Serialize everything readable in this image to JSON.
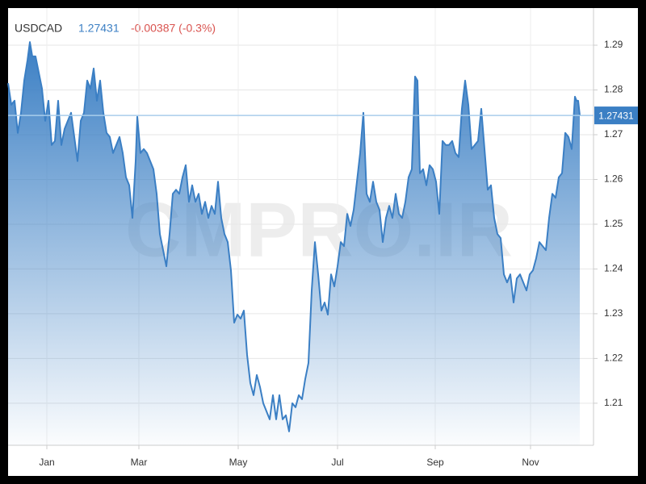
{
  "chart_data": {
    "type": "area",
    "title": "USDCAD",
    "last_value": 1.27431,
    "change": "-0.00387 (-0.3%)",
    "watermark": "CMPRO.IR",
    "color": "#3b7fc4",
    "change_color": "#d9534f",
    "grid": true,
    "x": [
      -24,
      -22,
      -20,
      -18,
      -16,
      -14,
      -12,
      -10.5,
      -9,
      -7,
      -5,
      -3,
      -1,
      1,
      3,
      5,
      7,
      9,
      11,
      13,
      15,
      17,
      19,
      21,
      23,
      25,
      27,
      29,
      31,
      33,
      35,
      37,
      39,
      41,
      43,
      45,
      47,
      49,
      51,
      53,
      55,
      56,
      58,
      60,
      62,
      64,
      66,
      68,
      70,
      72,
      74,
      76,
      78,
      80,
      82,
      84,
      86,
      88,
      90,
      92,
      94,
      96,
      98,
      100,
      102,
      104,
      106,
      108,
      110,
      112,
      114,
      116,
      118,
      120,
      122,
      124,
      126,
      128,
      130,
      132,
      134,
      136,
      138,
      140,
      142,
      144,
      146,
      148,
      150,
      152,
      154,
      156,
      158,
      160,
      162,
      164,
      166,
      168,
      170,
      172,
      174,
      176,
      178,
      180,
      182,
      184,
      186,
      188,
      190,
      192,
      194,
      196,
      198,
      200,
      202,
      204,
      206,
      208,
      210,
      212,
      214,
      216,
      218,
      220,
      222,
      224,
      226,
      228,
      229.5,
      231,
      233,
      235,
      237,
      239,
      241,
      243,
      245,
      247,
      249,
      251,
      253,
      255,
      257,
      259,
      261,
      263,
      265,
      267,
      269,
      271,
      273,
      275,
      277,
      279,
      281,
      283,
      285,
      287,
      289,
      291,
      293,
      295,
      297,
      299,
      301,
      303,
      305,
      307,
      309,
      311,
      313,
      315,
      317,
      319,
      321,
      323,
      325,
      327,
      328,
      329,
      330
    ],
    "values": [
      1.2815,
      1.2767,
      1.2776,
      1.2704,
      1.2749,
      1.2821,
      1.2866,
      1.2907,
      1.2875,
      1.2875,
      1.2839,
      1.2803,
      1.2731,
      1.2776,
      1.2677,
      1.2686,
      1.2776,
      1.2677,
      1.2713,
      1.2731,
      1.2749,
      1.2695,
      1.2641,
      1.2731,
      1.2749,
      1.2821,
      1.2803,
      1.2848,
      1.2776,
      1.2821,
      1.2749,
      1.2704,
      1.2695,
      1.2659,
      1.2677,
      1.2695,
      1.2659,
      1.2605,
      1.2587,
      1.2514,
      1.2641,
      1.274,
      1.2659,
      1.2668,
      1.2659,
      1.2641,
      1.2623,
      1.2568,
      1.2478,
      1.2442,
      1.2406,
      1.2478,
      1.2568,
      1.2577,
      1.2568,
      1.2605,
      1.2632,
      1.255,
      1.2587,
      1.255,
      1.2568,
      1.2523,
      1.255,
      1.2514,
      1.2541,
      1.2523,
      1.2595,
      1.2514,
      1.2478,
      1.246,
      1.2397,
      1.228,
      1.2298,
      1.2289,
      1.2307,
      1.2208,
      1.2145,
      1.2118,
      1.2163,
      1.2136,
      1.21,
      1.2082,
      1.2064,
      1.2118,
      1.2064,
      1.2118,
      1.2064,
      1.2073,
      1.2037,
      1.21,
      1.2091,
      1.2118,
      1.2109,
      1.2154,
      1.219,
      1.2352,
      1.246,
      1.2388,
      1.2307,
      1.2325,
      1.2298,
      1.2388,
      1.2361,
      1.2406,
      1.246,
      1.2451,
      1.2523,
      1.2496,
      1.2532,
      1.2595,
      1.2659,
      1.2749,
      1.2568,
      1.255,
      1.2595,
      1.255,
      1.2532,
      1.246,
      1.2514,
      1.2541,
      1.2514,
      1.2568,
      1.2523,
      1.2514,
      1.255,
      1.2605,
      1.2623,
      1.283,
      1.2821,
      1.2614,
      1.2623,
      1.2587,
      1.2632,
      1.2623,
      1.2595,
      1.2523,
      1.2686,
      1.2677,
      1.2677,
      1.2686,
      1.2659,
      1.265,
      1.2758,
      1.2821,
      1.2767,
      1.2668,
      1.2677,
      1.2686,
      1.2758,
      1.2668,
      1.2577,
      1.2587,
      1.2514,
      1.2478,
      1.2469,
      1.2388,
      1.237,
      1.2388,
      1.2325,
      1.2379,
      1.2388,
      1.237,
      1.2352,
      1.2388,
      1.2397,
      1.2424,
      1.246,
      1.2451,
      1.2442,
      1.2514,
      1.2568,
      1.2559,
      1.2605,
      1.2614,
      1.2704,
      1.2695,
      1.2668,
      1.2785,
      1.2776,
      1.2776,
      1.27431
    ],
    "xlim": [
      -24,
      338.5
    ],
    "xticks": [
      {
        "value": 0,
        "label": "Jan"
      },
      {
        "value": 57,
        "label": "Mar"
      },
      {
        "value": 118.5,
        "label": "May"
      },
      {
        "value": 180,
        "label": "Jul"
      },
      {
        "value": 240.5,
        "label": "Sep"
      },
      {
        "value": 299.5,
        "label": "Nov"
      }
    ],
    "ylim": [
      1.2006,
      1.2983
    ],
    "yticks": [
      1.21,
      1.22,
      1.23,
      1.24,
      1.25,
      1.26,
      1.27,
      1.28,
      1.29
    ]
  }
}
